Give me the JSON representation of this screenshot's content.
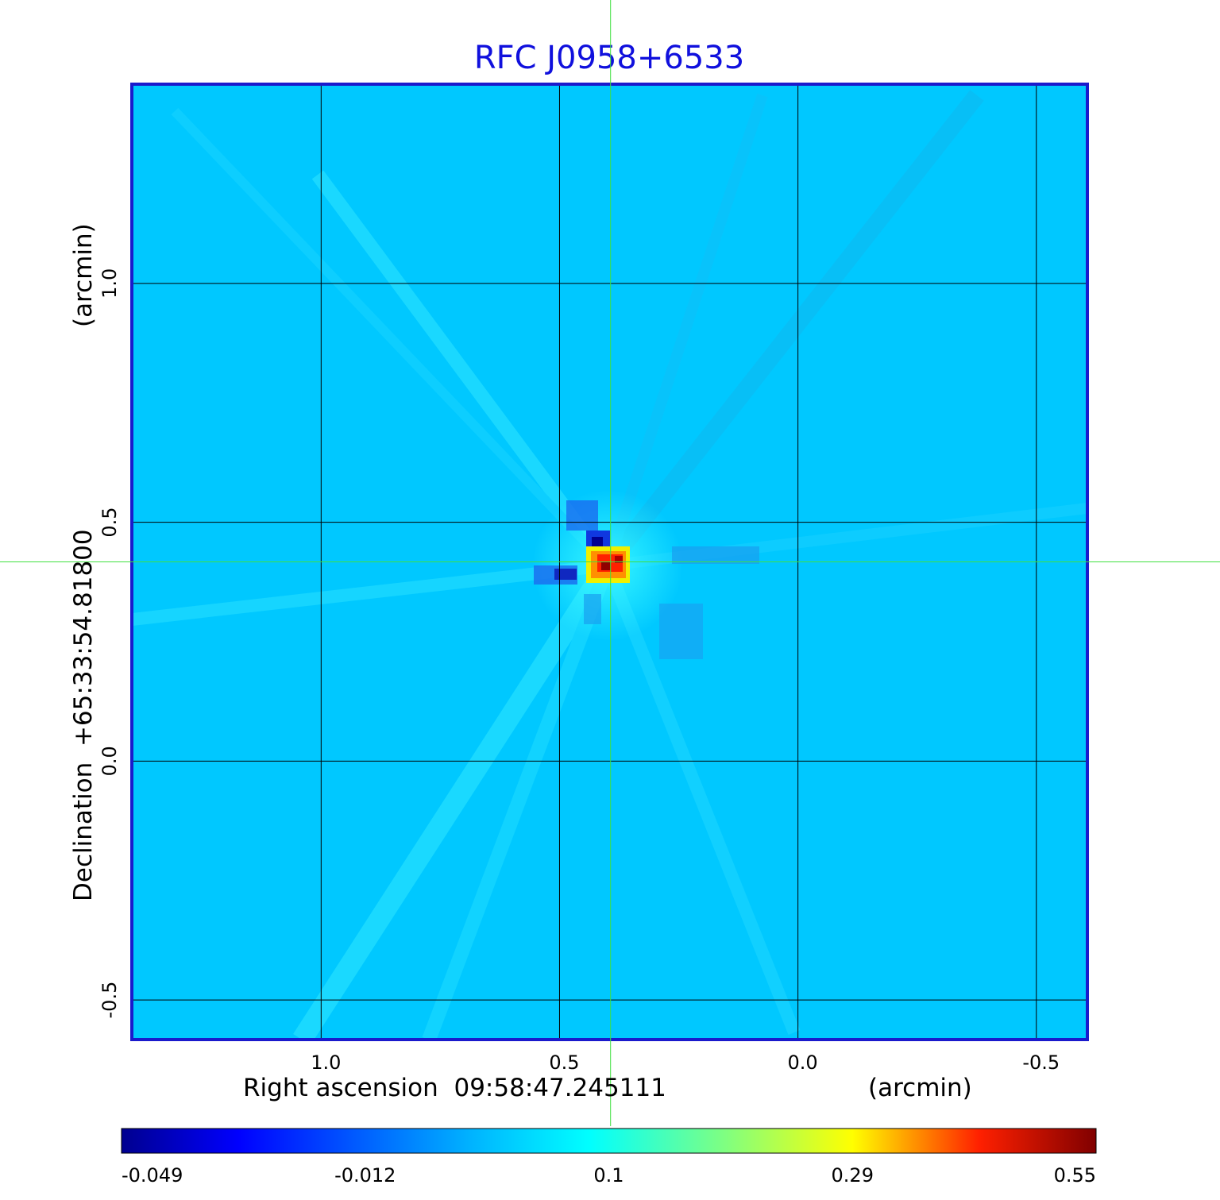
{
  "chart_data": {
    "type": "heatmap",
    "title": "RFC J0958+6533",
    "xlabel": "Right ascension  09:58:47.245111",
    "xunit": "(arcmin)",
    "ylabel": "Declination  +65:33:54.81800",
    "yunit": "(arcmin)",
    "x_ticks": [
      "1.0",
      "0.5",
      "0.0",
      "-0.5"
    ],
    "y_ticks": [
      "1.0",
      "0.5",
      "0.0",
      "-0.5"
    ],
    "x_tick_values": [
      1.0,
      0.5,
      0.0,
      -0.5
    ],
    "y_tick_values": [
      1.0,
      0.5,
      0.0,
      -0.5
    ],
    "xlim": [
      1.397,
      -0.607
    ],
    "ylim": [
      -0.583,
      1.417
    ],
    "grid": true,
    "crosshair": {
      "x": 0.393,
      "y": 0.417
    },
    "colorbar": {
      "position": "bottom",
      "tick_labels": [
        "-0.049",
        "-0.012",
        "0.1",
        "0.29",
        "0.55"
      ],
      "colormap": "jet"
    },
    "peak": {
      "x": 0.38,
      "y": 0.415,
      "value": 0.55
    },
    "colors": {
      "title": "#1010dd",
      "frame": "#1a1acc",
      "background_map": "#00c8ff",
      "crosshair": "#40e040",
      "grid": "#000000"
    }
  }
}
